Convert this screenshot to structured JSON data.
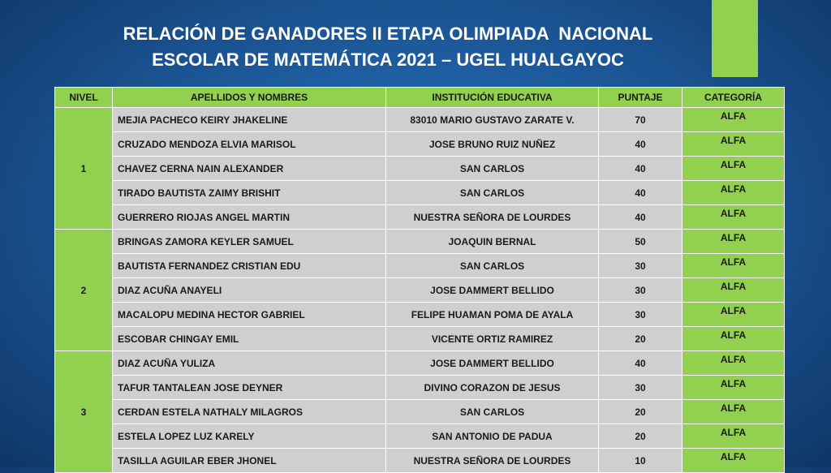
{
  "header": {
    "title_lines": [
      "RELACIÓN DE GANADORES II ETAPA OLIMPIADA  NACIONAL",
      "ESCOLAR DE MATEMÁTICA 2021 – UGEL HUALGAYOC"
    ]
  },
  "table": {
    "columns": [
      "NIVEL",
      "APELLIDOS Y NOMBRES",
      "INSTITUCIÓN EDUCATIVA",
      "PUNTAJE",
      "CATEGORÍA"
    ],
    "groups": [
      {
        "nivel": "1",
        "rows": [
          [
            "MEJIA PACHECO KEIRY JHAKELINE",
            "83010 MARIO GUSTAVO ZARATE V.",
            70,
            "ALFA"
          ],
          [
            "CRUZADO MENDOZA ELVIA MARISOL",
            "JOSE BRUNO RUIZ NUÑEZ",
            40,
            "ALFA"
          ],
          [
            "CHAVEZ CERNA NAIN ALEXANDER",
            "SAN CARLOS",
            40,
            "ALFA"
          ],
          [
            "TIRADO BAUTISTA ZAIMY BRISHIT",
            "SAN CARLOS",
            40,
            "ALFA"
          ],
          [
            "GUERRERO RIOJAS ANGEL MARTIN",
            "NUESTRA SEÑORA DE LOURDES",
            40,
            "ALFA"
          ]
        ]
      },
      {
        "nivel": "2",
        "rows": [
          [
            "BRINGAS ZAMORA KEYLER SAMUEL",
            "JOAQUIN BERNAL",
            50,
            "ALFA"
          ],
          [
            "BAUTISTA FERNANDEZ CRISTIAN EDU",
            "SAN CARLOS",
            30,
            "ALFA"
          ],
          [
            "DIAZ ACUÑA ANAYELI",
            "JOSE DAMMERT BELLIDO",
            30,
            "ALFA"
          ],
          [
            "MACALOPU MEDINA HECTOR GABRIEL",
            "FELIPE HUAMAN POMA DE AYALA",
            30,
            "ALFA"
          ],
          [
            "ESCOBAR CHINGAY EMIL",
            "VICENTE ORTIZ RAMIREZ",
            20,
            "ALFA"
          ]
        ]
      },
      {
        "nivel": "3",
        "rows": [
          [
            "DIAZ ACUÑA YULIZA",
            "JOSE DAMMERT BELLIDO",
            40,
            "ALFA"
          ],
          [
            "TAFUR TANTALEAN JOSE DEYNER",
            "DIVINO CORAZON DE JESUS",
            30,
            "ALFA"
          ],
          [
            "CERDAN ESTELA NATHALY MILAGROS",
            "SAN CARLOS",
            20,
            "ALFA"
          ],
          [
            "ESTELA LOPEZ LUZ KARELY",
            "SAN ANTONIO DE PADUA",
            20,
            "ALFA"
          ],
          [
            "TASILLA AGUILAR EBER JHONEL",
            "NUESTRA SEÑORA DE LOURDES",
            10,
            "ALFA"
          ]
        ]
      }
    ]
  }
}
